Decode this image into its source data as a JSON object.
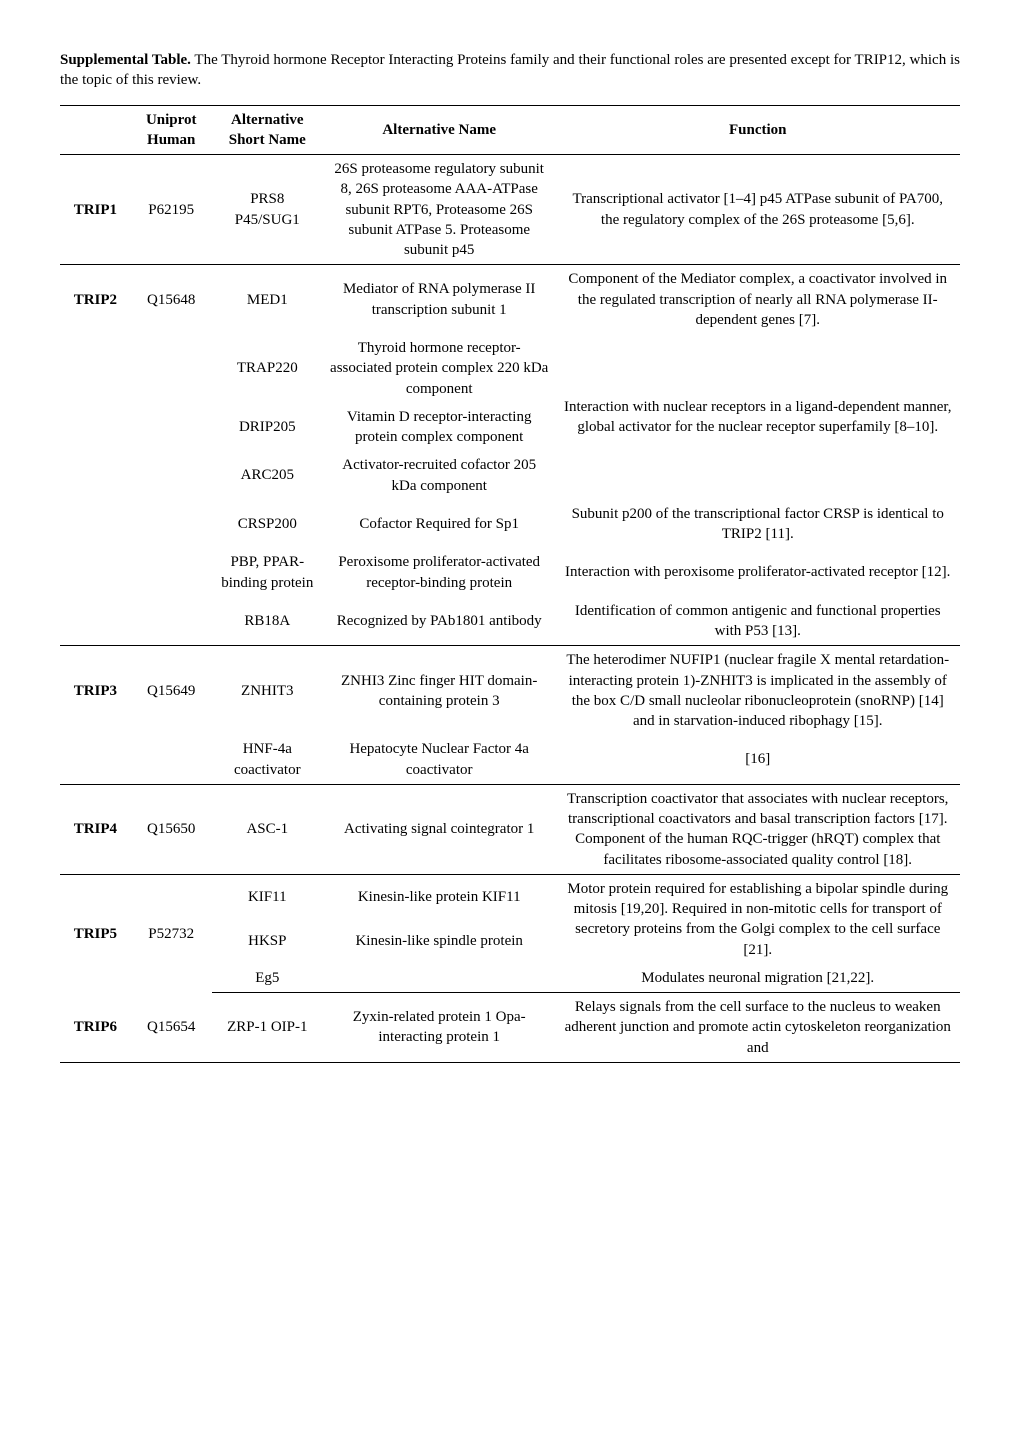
{
  "caption": {
    "lead": "Supplemental Table.",
    "rest": " The Thyroid hormone Receptor Interacting Proteins family and their functional roles are presented except for TRIP12, which is the topic of this review."
  },
  "headers": [
    "",
    "Uniprot Human",
    "Alternative Short Name",
    "Alternative Name",
    "Function"
  ],
  "rows": [
    {
      "trip": "TRIP1",
      "uniprot": "P62195",
      "short": "PRS8 P45/SUG1",
      "alt": "26S proteasome regulatory subunit 8, 26S proteasome AAA-ATPase subunit RPT6, Proteasome 26S subunit ATPase 5. Proteasome subunit p45",
      "func": "Transcriptional activator [1–4] p45 ATPase subunit of PA700, the regulatory complex of the 26S proteasome [5,6].",
      "sep": true
    },
    {
      "trip": "TRIP2",
      "uniprot": "Q15648",
      "short": "MED1",
      "alt": "Mediator of RNA polymerase II transcription subunit 1",
      "func": "Component of the Mediator complex, a coactivator involved in the regulated transcription of nearly all RNA polymerase II-dependent genes [7].",
      "sep": false
    },
    {
      "trip": "",
      "uniprot": "",
      "short": "TRAP220",
      "alt": "Thyroid hormone receptor-associated protein complex 220 kDa component",
      "func_rowspan_start": true,
      "func": "Interaction with nuclear receptors in a ligand-dependent manner, global activator for the nuclear receptor superfamily [8–10].",
      "sep": false
    },
    {
      "trip": "",
      "uniprot": "",
      "short": "DRIP205",
      "alt": "Vitamin D receptor-interacting protein complex component",
      "func_rowspan_cont": true,
      "sep": false
    },
    {
      "trip": "",
      "uniprot": "",
      "short": "ARC205",
      "alt": "Activator-recruited cofactor 205 kDa component",
      "func_rowspan_cont": true,
      "sep": false
    },
    {
      "trip": "",
      "uniprot": "",
      "short": "CRSP200",
      "alt": "Cofactor Required for Sp1",
      "func": "Subunit p200 of the transcriptional factor CRSP is identical to TRIP2 [11].",
      "sep": false
    },
    {
      "trip": "",
      "uniprot": "",
      "short": "PBP, PPAR-binding protein",
      "alt": "Peroxisome proliferator-activated receptor-binding protein",
      "func": "Interaction with peroxisome proliferator-activated receptor [12].",
      "sep": false
    },
    {
      "trip": "",
      "uniprot": "",
      "short": "RB18A",
      "alt": "Recognized by PAb1801 antibody",
      "func": "Identification of common antigenic and functional properties with P53 [13].",
      "sep": true
    },
    {
      "trip": "TRIP3",
      "uniprot": "Q15649",
      "short": "ZNHIT3",
      "alt": "ZNHI3 Zinc finger HIT domain-containing protein 3",
      "func": "The heterodimer NUFIP1 (nuclear fragile X mental retardation-interacting protein 1)-ZNHIT3 is implicated in the assembly of the box C/D small nucleolar ribonucleoprotein (snoRNP) [14] and in starvation-induced ribophagy [15].",
      "sep": false
    },
    {
      "trip": "",
      "uniprot": "",
      "short": "HNF-4a coactivator",
      "alt": "Hepatocyte Nuclear Factor 4a coactivator",
      "func": "[16]",
      "sep": true
    },
    {
      "trip": "TRIP4",
      "uniprot": "Q15650",
      "short": "ASC-1",
      "alt": "Activating signal cointegrator 1",
      "func": "Transcription coactivator that associates with nuclear receptors, transcriptional coactivators and basal transcription factors [17]. Component of the human RQC-trigger (hRQT) complex that facilitates ribosome-associated quality control [18].",
      "sep": true
    },
    {
      "trip": "TRIP5",
      "uniprot": "P52732",
      "short_rowspan_start": true,
      "short": "KIF11",
      "alt": "Kinesin-like protein KIF11",
      "func": "Motor protein required for establishing a bipolar spindle during mitosis [19,20]. Required in non-mitotic cells for transport of secretory proteins from the Golgi complex to the cell surface [21].",
      "sep": false
    },
    {
      "trip": "",
      "uniprot": "",
      "short": "HKSP",
      "alt": "Kinesin-like spindle protein",
      "func_rowspan_cont2": true,
      "sep": false
    },
    {
      "trip": "",
      "uniprot": "",
      "short": "Eg5",
      "alt": "",
      "func": "Modulates neuronal migration [21,22].",
      "sep": true
    },
    {
      "trip": "TRIP6",
      "uniprot": "Q15654",
      "short": "ZRP-1 OIP-1",
      "alt": "Zyxin-related protein 1 Opa-interacting protein 1",
      "func": "Relays signals from the cell surface to the nucleus to weaken adherent junction and promote actin cytoskeleton reorganization and",
      "sep": false,
      "last": true
    }
  ]
}
